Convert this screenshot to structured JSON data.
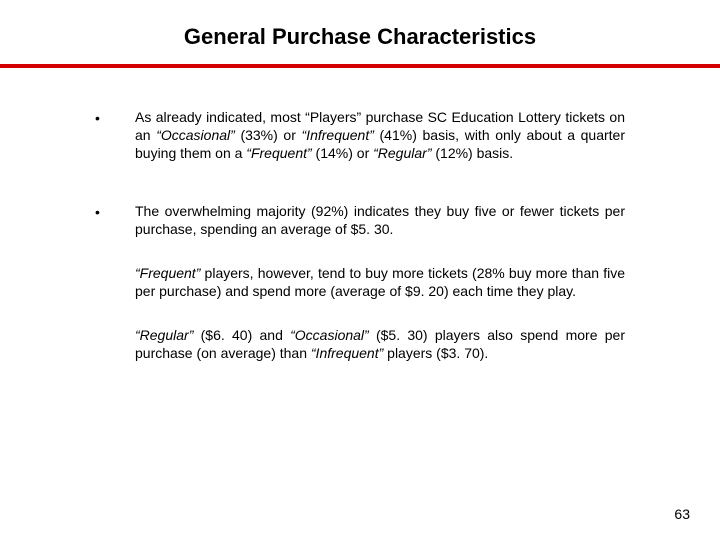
{
  "title": "General Purchase Characteristics",
  "rule_color": "#d40000",
  "bullets": [
    {
      "mark": "•",
      "html": "As already indicated, most “Players” purchase SC Education Lottery tickets on an <span class=\"italic\">“Occasional”</span> (33%) or <span class=\"italic\">“Infrequent”</span> (41%) basis, with only about a quarter buying them on a <span class=\"italic\">“Frequent”</span> (14%) or <span class=\"italic\">“Regular”</span> (12%) basis."
    },
    {
      "mark": "•",
      "html": "The overwhelming majority (92%) indicates they buy five or fewer tickets per purchase, spending an average of $5. 30."
    }
  ],
  "subs": [
    {
      "html": "<span class=\"italic\">“Frequent”</span> players, however, tend to buy more tickets (28% buy more than five per purchase) and spend more (average of $9. 20) each time they play."
    },
    {
      "html": "<span class=\"italic\">“Regular”</span> ($6. 40) and <span class=\"italic\">“Occasional”</span> ($5. 30) players also spend more per purchase (on average) than <span class=\"italic\">“Infrequent”</span> players ($3. 70)."
    }
  ],
  "page_number": "63"
}
